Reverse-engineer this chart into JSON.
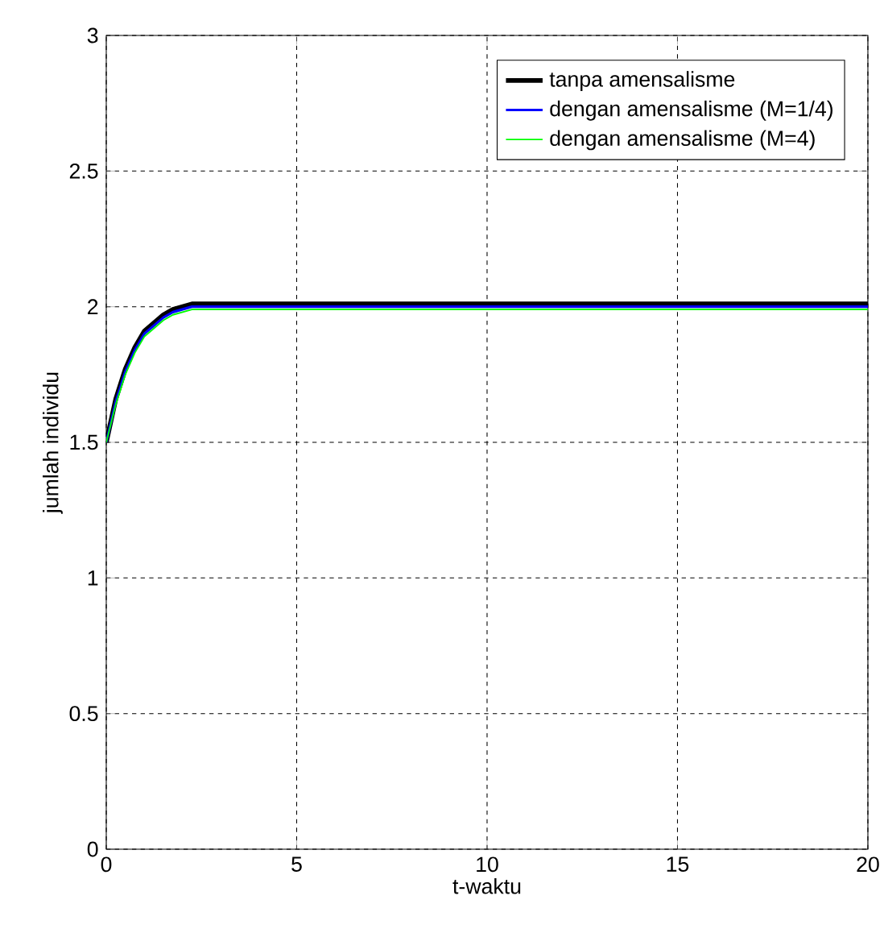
{
  "chart_data": {
    "type": "line",
    "xlabel": "t-waktu",
    "ylabel": "jumlah individu",
    "x": [
      0,
      0.25,
      0.5,
      0.75,
      1,
      1.25,
      1.5,
      1.75,
      2,
      2.25,
      2.5,
      3,
      5,
      10,
      15,
      20
    ],
    "series": [
      {
        "name": "tanpa amensalisme",
        "color": "#000000",
        "values": [
          1.5,
          1.66,
          1.77,
          1.85,
          1.91,
          1.94,
          1.97,
          1.99,
          2,
          2.01,
          2.01,
          2.01,
          2.01,
          2.01,
          2.01,
          2.01
        ]
      },
      {
        "name": "dengan amensalisme (M=1/4)",
        "color": "#0000ff",
        "values": [
          1.5,
          1.65,
          1.76,
          1.84,
          1.9,
          1.93,
          1.96,
          1.98,
          1.99,
          2,
          2,
          2,
          2,
          2,
          2,
          2
        ]
      },
      {
        "name": "dengan amensalisme (M=4)",
        "color": "#00ff00",
        "values": [
          1.5,
          1.64,
          1.75,
          1.83,
          1.89,
          1.92,
          1.95,
          1.97,
          1.98,
          1.99,
          1.99,
          1.99,
          1.99,
          1.99,
          1.99,
          1.99
        ]
      }
    ],
    "xlim": [
      0,
      20
    ],
    "ylim": [
      0,
      3
    ],
    "xticks": [
      0,
      5,
      10,
      15,
      20
    ],
    "yticks": [
      0,
      0.5,
      1,
      1.5,
      2,
      2.5,
      3
    ],
    "grid": true,
    "legend": "top right",
    "marker": "none",
    "line_style": "solid"
  }
}
